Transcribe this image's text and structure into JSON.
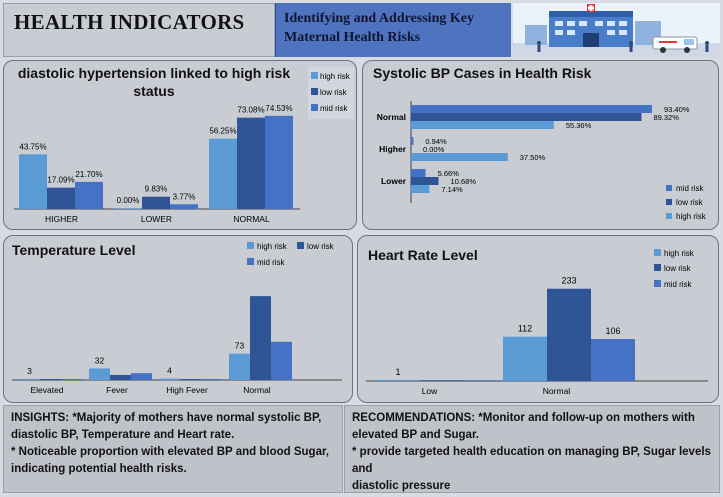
{
  "header": {
    "title": "HEALTH INDICATORS",
    "subtitle_line1": "Identifying and Addressing Key",
    "subtitle_line2": "Maternal Health Risks"
  },
  "colors": {
    "high_risk": "#5b9bd5",
    "low_risk": "#2f5597",
    "mid_risk": "#4472c4"
  },
  "chart_data": [
    {
      "id": "diastolic",
      "type": "bar",
      "title_line1": "diastolic hypertension linked to high risk",
      "title_line2": "status",
      "categories": [
        "HIGHER",
        "LOWER",
        "NORMAL"
      ],
      "series": [
        {
          "name": "high risk",
          "values": [
            43.75,
            0.0,
            56.25
          ],
          "labels": [
            "43.75%",
            "0.00%",
            "56.25%"
          ]
        },
        {
          "name": "low risk",
          "values": [
            17.09,
            9.83,
            73.08
          ],
          "labels": [
            "17.09%",
            "9.83%",
            "73.08%"
          ]
        },
        {
          "name": "mid risk",
          "values": [
            21.7,
            3.77,
            74.53
          ],
          "labels": [
            "21.70%",
            "3.77%",
            "74.53%"
          ]
        }
      ],
      "legend_position": "top-right",
      "ylim": [
        0,
        80
      ]
    },
    {
      "id": "systolic",
      "type": "bar",
      "orientation": "horizontal",
      "title": "Systolic BP Cases in Health Risk",
      "categories": [
        "Normal",
        "Higher",
        "Lower"
      ],
      "series": [
        {
          "name": "mid risk",
          "values": [
            93.4,
            0.94,
            5.66
          ],
          "labels": [
            "93.40%",
            "0.94%",
            "5.66%"
          ]
        },
        {
          "name": "low risk",
          "values": [
            89.32,
            0.0,
            10.68
          ],
          "labels": [
            "89.32%",
            "0.00%",
            "10.68%"
          ]
        },
        {
          "name": "high risk",
          "values": [
            55.36,
            37.5,
            7.14
          ],
          "labels": [
            "55.36%",
            "37.50%",
            "7.14%"
          ]
        }
      ],
      "legend_position": "bottom-right",
      "xlim": [
        0,
        100
      ]
    },
    {
      "id": "temperature",
      "type": "bar",
      "title": "Temperature Level",
      "categories": [
        "Elevated",
        "Fever",
        "High Fever",
        "Normal"
      ],
      "series": [
        {
          "name": "high risk",
          "values": [
            3,
            32,
            4,
            73
          ],
          "labels": [
            "3",
            "32",
            "4",
            "73"
          ]
        },
        {
          "name": "low risk",
          "values": [
            1,
            14,
            2,
            233
          ]
        },
        {
          "name": "mid risk",
          "values": [
            2,
            19,
            1,
            106
          ]
        }
      ],
      "legend_position": "top-right",
      "ylim": [
        0,
        250
      ]
    },
    {
      "id": "heartrate",
      "type": "bar",
      "title": "Heart Rate Level",
      "categories": [
        "Low",
        "Normal"
      ],
      "series": [
        {
          "name": "high risk",
          "values": [
            1,
            112
          ],
          "labels": [
            "1",
            "112"
          ]
        },
        {
          "name": "low risk",
          "values": [
            0,
            233
          ],
          "labels": [
            "",
            "233"
          ]
        },
        {
          "name": "mid risk",
          "values": [
            0,
            106
          ],
          "labels": [
            "",
            "106"
          ]
        }
      ],
      "legend_position": "top-right",
      "ylim": [
        0,
        250
      ]
    }
  ],
  "insights": {
    "line1": "INSIGHTS: *Majority of mothers have normal systolic BP,",
    "line2": "diastolic BP, Temperature and Heart rate.",
    "line3": "* Noticeable proportion with elevated BP and blood Sugar,",
    "line4": "indicating potential health risks."
  },
  "recommendations": {
    "line1": "RECOMMENDATIONS: *Monitor and follow-up on mothers with",
    "line2": "elevated BP and Sugar.",
    "line3": "* provide targeted health education on managing BP, Sugar levels and",
    "line4": "diastolic pressure"
  }
}
